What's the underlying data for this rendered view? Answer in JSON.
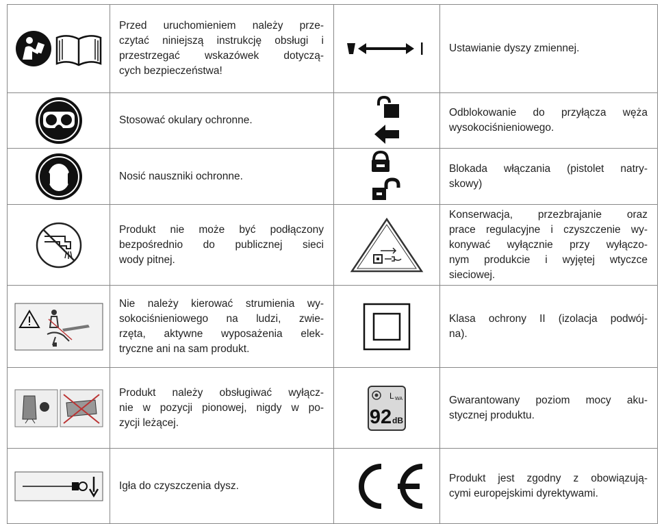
{
  "table": {
    "rows": [
      {
        "left": [
          "Przed uruchomieniem należy prze-",
          "czytać niniejszą instrukcję obsługi i",
          "przestrzegać wskazówek dotyczą-",
          "cych bezpieczeństwa!"
        ],
        "right": [
          "Ustawianie dyszy zmiennej."
        ]
      },
      {
        "left": [
          "Stosować okulary ochronne."
        ],
        "right": [
          "Odblokowanie do przyłącza węża",
          "wysokociśnieniowego."
        ]
      },
      {
        "left": [
          "Nosić nauszniki ochronne."
        ],
        "right": [
          "Blokada włączania (pistolet natry-",
          "skowy)"
        ]
      },
      {
        "left": [
          "Produkt nie może być podłączony",
          "bezpośrednio do publicznej sieci",
          "wody pitnej."
        ],
        "right": [
          "Konserwacja, przezbrajanie oraz",
          "prace regulacyjne i czyszczenie wy-",
          "konywać wyłącznie przy wyłączo-",
          "nym produkcie i wyjętej wtyczce",
          "sieciowej."
        ]
      },
      {
        "left": [
          "Nie należy kierować strumienia wy-",
          "sokociśnieniowego na ludzi, zwie-",
          "rzęta, aktywne wyposażenia elek-",
          "tryczne ani na sam produkt."
        ],
        "right": [
          "Klasa ochrony II (izolacja podwój-",
          "na)."
        ]
      },
      {
        "left": [
          "Produkt należy obsługiwać wyłącz-",
          "nie w pozycji pionowej, nigdy w po-",
          "zycji leżącej."
        ],
        "right": [
          "Gwarantowany poziom mocy aku-",
          "stycznej produktu."
        ]
      },
      {
        "left": [
          "Igła do czyszczenia dysz."
        ],
        "right": [
          "Produkt jest zgodny z obowiązują-",
          "cymi europejskimi dyrektywami."
        ]
      }
    ],
    "noise_icon": {
      "symbol": "L",
      "subscript": "WA",
      "level": "92",
      "unit": "dB"
    }
  }
}
